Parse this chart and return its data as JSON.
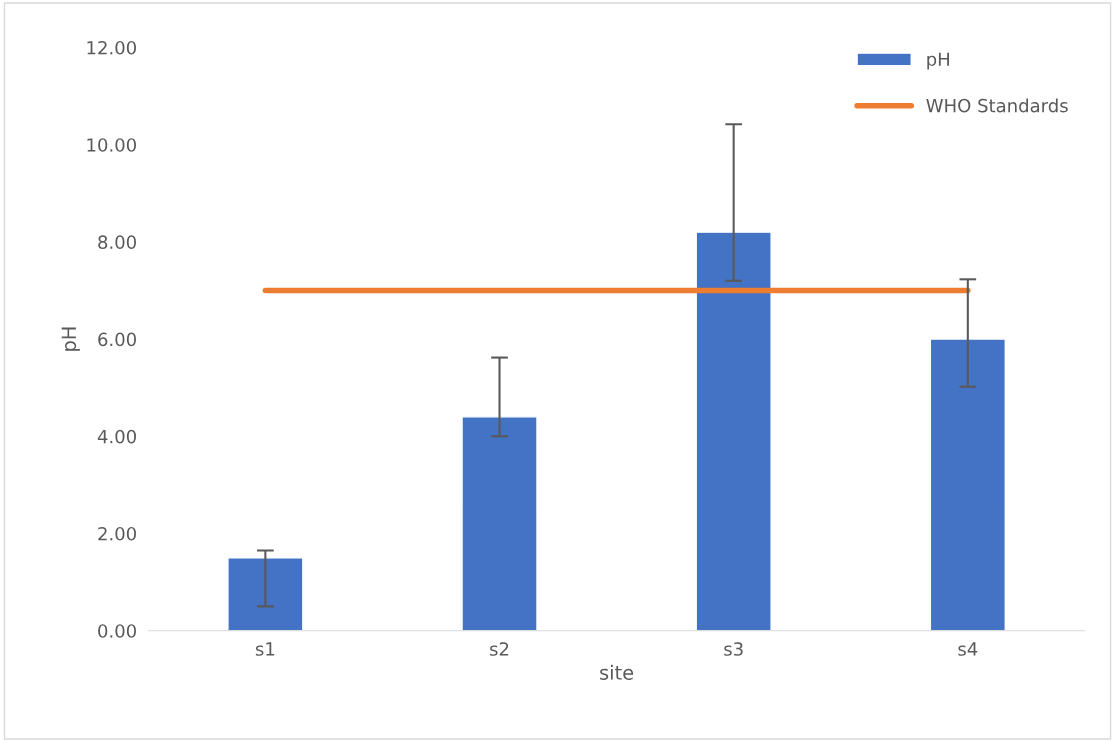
{
  "chart_data": {
    "type": "bar",
    "xlabel": "site",
    "ylabel": "pH",
    "categories": [
      "s1",
      "s2",
      "s3",
      "s4"
    ],
    "series": [
      {
        "name": "pH",
        "color": "#4472c4",
        "values": [
          1.5,
          4.4,
          8.2,
          6.0
        ],
        "errors": [
          [
            0.5,
            1.65
          ],
          [
            4.0,
            5.62
          ],
          [
            7.2,
            10.42
          ],
          [
            5.02,
            7.23
          ]
        ]
      },
      {
        "name": "WHO Standards",
        "type": "line",
        "color": "#ed7d31",
        "values": [
          7.0,
          7.0,
          7.0,
          7.0
        ]
      }
    ],
    "ylim": [
      0,
      12
    ],
    "yticks": [
      {
        "value": 0,
        "label": "0.00"
      },
      {
        "value": 2,
        "label": "2.00"
      },
      {
        "value": 4,
        "label": "4.00"
      },
      {
        "value": 6,
        "label": "6.00"
      },
      {
        "value": 8,
        "label": "8.00"
      },
      {
        "value": 10,
        "label": "10.00"
      },
      {
        "value": 12,
        "label": "12.00"
      }
    ],
    "grid": false,
    "legend": "top right"
  }
}
